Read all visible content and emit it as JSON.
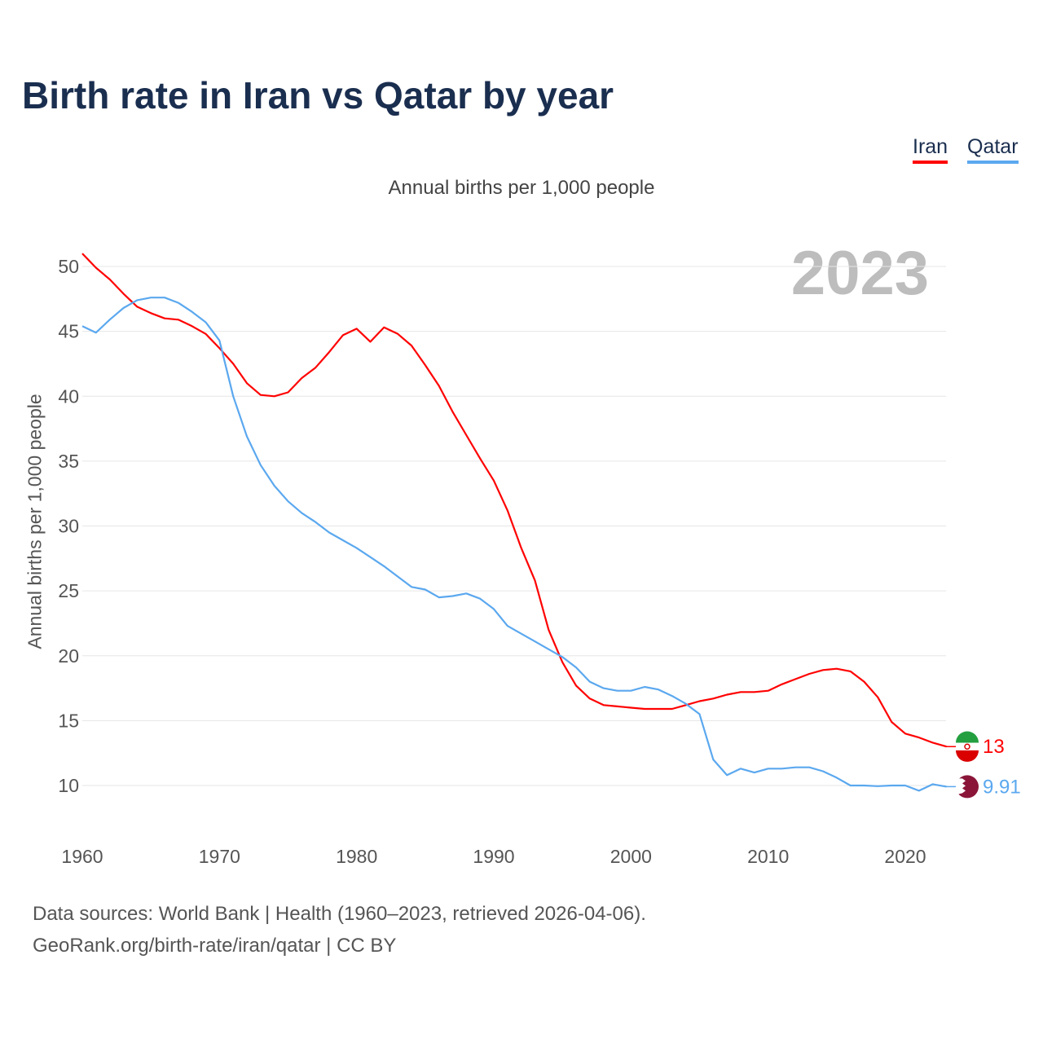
{
  "chart_data": {
    "type": "line",
    "title": "Birth rate in Iran vs Qatar by year",
    "subtitle": "Annual births per 1,000 people",
    "ylabel": "Annual births per 1,000 people",
    "xlabel": "",
    "year_label": "2023",
    "xlim": [
      1960,
      2023
    ],
    "ylim": [
      10,
      50
    ],
    "yticks": [
      10,
      15,
      20,
      25,
      30,
      35,
      40,
      45,
      50
    ],
    "xticks": [
      1960,
      1970,
      1980,
      1990,
      2000,
      2010,
      2020
    ],
    "grid": true,
    "legend_position": "top-right",
    "x": [
      1960,
      1961,
      1962,
      1963,
      1964,
      1965,
      1966,
      1967,
      1968,
      1969,
      1970,
      1971,
      1972,
      1973,
      1974,
      1975,
      1976,
      1977,
      1978,
      1979,
      1980,
      1981,
      1982,
      1983,
      1984,
      1985,
      1986,
      1987,
      1988,
      1989,
      1990,
      1991,
      1992,
      1993,
      1994,
      1995,
      1996,
      1997,
      1998,
      1999,
      2000,
      2001,
      2002,
      2003,
      2004,
      2005,
      2006,
      2007,
      2008,
      2009,
      2010,
      2011,
      2012,
      2013,
      2014,
      2015,
      2016,
      2017,
      2018,
      2019,
      2020,
      2021,
      2022,
      2023
    ],
    "series": [
      {
        "name": "Iran",
        "color": "#ff0000",
        "end_label": "13",
        "values": [
          51.0,
          49.9,
          49.0,
          47.9,
          46.9,
          46.4,
          46.0,
          45.9,
          45.4,
          44.8,
          43.7,
          42.5,
          41.0,
          40.1,
          40.0,
          40.3,
          41.4,
          42.2,
          43.4,
          44.7,
          45.2,
          44.2,
          45.3,
          44.8,
          43.9,
          42.4,
          40.8,
          38.8,
          37.0,
          35.2,
          33.5,
          31.2,
          28.3,
          25.8,
          22.0,
          19.5,
          17.7,
          16.7,
          16.2,
          16.1,
          16.0,
          15.9,
          15.9,
          15.9,
          16.2,
          16.5,
          16.7,
          17.0,
          17.2,
          17.2,
          17.3,
          17.8,
          18.2,
          18.6,
          18.9,
          19.0,
          18.8,
          18.0,
          16.8,
          14.9,
          14.0,
          13.7,
          13.3,
          13.0
        ]
      },
      {
        "name": "Qatar",
        "color": "#5ba8ef",
        "end_label": "9.91",
        "values": [
          45.4,
          44.9,
          45.9,
          46.8,
          47.4,
          47.6,
          47.6,
          47.2,
          46.5,
          45.7,
          44.3,
          40.0,
          36.9,
          34.7,
          33.1,
          31.9,
          31.0,
          30.3,
          29.5,
          28.9,
          28.3,
          27.6,
          26.9,
          26.1,
          25.3,
          25.1,
          24.5,
          24.6,
          24.8,
          24.4,
          23.6,
          22.3,
          21.7,
          21.1,
          20.5,
          19.9,
          19.1,
          18.0,
          17.5,
          17.3,
          17.3,
          17.6,
          17.4,
          16.9,
          16.3,
          15.5,
          12.0,
          10.8,
          11.3,
          11.0,
          11.3,
          11.3,
          11.4,
          11.4,
          11.1,
          10.6,
          10.0,
          10.0,
          9.95,
          10.0,
          10.0,
          9.6,
          10.1,
          9.91
        ]
      }
    ]
  },
  "footer": {
    "line1": "Data sources: World Bank | Health (1960–2023, retrieved 2026-04-06).",
    "line2": "GeoRank.org/birth-rate/iran/qatar | CC BY"
  }
}
